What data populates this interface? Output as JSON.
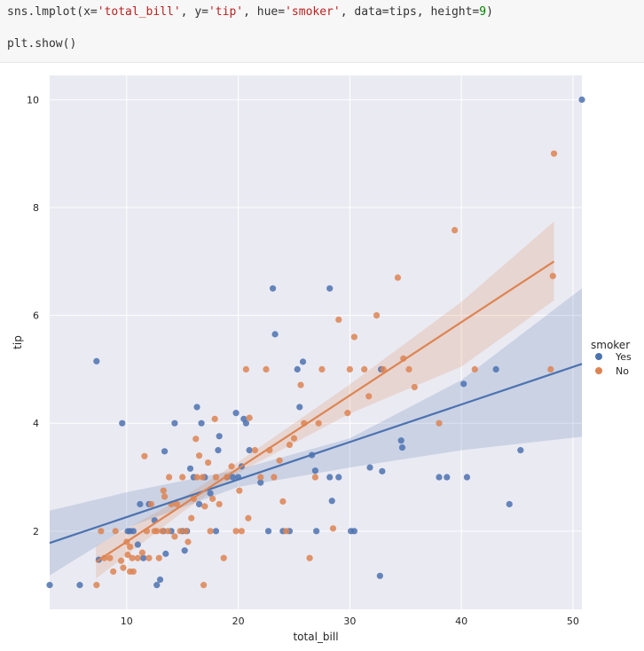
{
  "code": {
    "line1": {
      "fn": "sns.lmplot(x=",
      "x_val": "'total_bill'",
      "sep1": ", y=",
      "y_val": "'tip'",
      "sep2": ", hue=",
      "hue_val": "'smoker'",
      "sep3": ", data=tips, height=",
      "height_val": "9",
      "end": ")"
    },
    "line2": "plt.show()"
  },
  "chart_data": {
    "type": "scatter",
    "xlabel": "total_bill",
    "ylabel": "tip",
    "xlim": [
      3.1,
      50.8
    ],
    "ylim": [
      0.55,
      10.45
    ],
    "xticks": [
      10,
      20,
      30,
      40,
      50
    ],
    "yticks": [
      2,
      4,
      6,
      8,
      10
    ],
    "grid": true,
    "legend": {
      "title": "smoker",
      "placement": "right"
    },
    "series": [
      {
        "name": "Yes",
        "color": "#4c72b0",
        "regression": {
          "x": [
            3.1,
            50.8
          ],
          "y": [
            1.78,
            5.1
          ]
        },
        "ci_band": {
          "x": [
            3.1,
            10,
            20,
            30,
            40,
            50.8
          ],
          "lower": [
            1.18,
            2.06,
            2.82,
            3.18,
            3.5,
            3.75
          ],
          "upper": [
            2.38,
            2.72,
            3.14,
            3.72,
            4.8,
            6.5
          ]
        },
        "points": [
          [
            3.1,
            1.0
          ],
          [
            5.8,
            1.0
          ],
          [
            7.3,
            5.15
          ],
          [
            7.5,
            1.47
          ],
          [
            9.6,
            4.0
          ],
          [
            10.1,
            2.0
          ],
          [
            10.3,
            2.0
          ],
          [
            10.6,
            2.0
          ],
          [
            11.0,
            1.75
          ],
          [
            11.2,
            2.5
          ],
          [
            11.5,
            1.5
          ],
          [
            12.0,
            2.5
          ],
          [
            12.5,
            2.2
          ],
          [
            12.7,
            1.0
          ],
          [
            13.0,
            1.1
          ],
          [
            13.3,
            2.0
          ],
          [
            13.4,
            3.48
          ],
          [
            13.5,
            1.58
          ],
          [
            14.0,
            2.0
          ],
          [
            14.3,
            4.0
          ],
          [
            15.0,
            2.0
          ],
          [
            15.2,
            1.64
          ],
          [
            15.4,
            2.0
          ],
          [
            15.7,
            3.16
          ],
          [
            16.0,
            3.0
          ],
          [
            16.3,
            4.3
          ],
          [
            16.5,
            2.5
          ],
          [
            16.7,
            4.0
          ],
          [
            17.0,
            3.0
          ],
          [
            17.5,
            2.7
          ],
          [
            18.0,
            2.0
          ],
          [
            18.2,
            3.5
          ],
          [
            18.3,
            3.76
          ],
          [
            19.0,
            3.0
          ],
          [
            19.5,
            3.0
          ],
          [
            19.8,
            4.19
          ],
          [
            20.0,
            3.0
          ],
          [
            20.3,
            3.2
          ],
          [
            20.5,
            4.08
          ],
          [
            20.7,
            4.0
          ],
          [
            21.0,
            3.5
          ],
          [
            22.0,
            2.9
          ],
          [
            22.7,
            2.0
          ],
          [
            23.1,
            6.5
          ],
          [
            23.3,
            5.65
          ],
          [
            24.0,
            2.0
          ],
          [
            24.6,
            2.0
          ],
          [
            25.3,
            5.0
          ],
          [
            25.5,
            4.3
          ],
          [
            25.8,
            5.14
          ],
          [
            26.6,
            3.41
          ],
          [
            26.9,
            3.12
          ],
          [
            27.0,
            2.0
          ],
          [
            28.2,
            6.5
          ],
          [
            28.4,
            2.56
          ],
          [
            28.2,
            3.0
          ],
          [
            29.0,
            3.0
          ],
          [
            30.1,
            2.0
          ],
          [
            30.4,
            2.0
          ],
          [
            31.8,
            3.18
          ],
          [
            32.7,
            1.17
          ],
          [
            32.8,
            5.0
          ],
          [
            32.9,
            3.11
          ],
          [
            34.6,
            3.68
          ],
          [
            34.7,
            3.55
          ],
          [
            38.0,
            3.0
          ],
          [
            38.7,
            3.0
          ],
          [
            40.2,
            4.73
          ],
          [
            40.5,
            3.0
          ],
          [
            43.1,
            5.0
          ],
          [
            44.3,
            2.5
          ],
          [
            45.3,
            3.5
          ],
          [
            50.8,
            10.0
          ]
        ]
      },
      {
        "name": "No",
        "color": "#dd8452",
        "regression": {
          "x": [
            7.25,
            48.3
          ],
          "y": [
            1.43,
            7.0
          ]
        },
        "ci_band": {
          "x": [
            7.25,
            15,
            20,
            30,
            40,
            48.3
          ],
          "lower": [
            1.12,
            2.35,
            3.08,
            4.18,
            5.05,
            6.28
          ],
          "upper": [
            1.72,
            2.62,
            3.28,
            4.72,
            6.25,
            7.74
          ]
        },
        "points": [
          [
            7.3,
            1.0
          ],
          [
            7.7,
            2.0
          ],
          [
            8.0,
            1.5
          ],
          [
            8.5,
            1.5
          ],
          [
            8.8,
            1.25
          ],
          [
            9.0,
            2.0
          ],
          [
            9.5,
            1.45
          ],
          [
            9.7,
            1.32
          ],
          [
            10.0,
            1.8
          ],
          [
            10.1,
            1.56
          ],
          [
            10.3,
            1.25
          ],
          [
            10.3,
            1.71
          ],
          [
            10.5,
            1.5
          ],
          [
            10.6,
            1.25
          ],
          [
            11.0,
            1.5
          ],
          [
            11.4,
            1.6
          ],
          [
            11.6,
            3.39
          ],
          [
            11.8,
            2.0
          ],
          [
            12.0,
            1.5
          ],
          [
            12.2,
            2.5
          ],
          [
            12.5,
            2.0
          ],
          [
            12.7,
            2.0
          ],
          [
            12.9,
            1.5
          ],
          [
            13.2,
            2.0
          ],
          [
            13.3,
            2.75
          ],
          [
            13.4,
            2.64
          ],
          [
            13.7,
            2.0
          ],
          [
            13.8,
            3.0
          ],
          [
            14.0,
            2.5
          ],
          [
            14.3,
            1.9
          ],
          [
            14.5,
            2.5
          ],
          [
            14.8,
            2.0
          ],
          [
            15.0,
            3.0
          ],
          [
            15.3,
            2.0
          ],
          [
            15.5,
            1.8
          ],
          [
            15.8,
            2.24
          ],
          [
            16.0,
            2.6
          ],
          [
            16.2,
            3.71
          ],
          [
            16.3,
            3.0
          ],
          [
            16.5,
            3.4
          ],
          [
            16.8,
            3.0
          ],
          [
            16.9,
            1.0
          ],
          [
            17.0,
            2.46
          ],
          [
            17.3,
            3.27
          ],
          [
            17.5,
            2.0
          ],
          [
            17.7,
            2.6
          ],
          [
            17.9,
            4.08
          ],
          [
            18.0,
            3.0
          ],
          [
            18.3,
            2.5
          ],
          [
            18.7,
            1.5
          ],
          [
            19.0,
            3.0
          ],
          [
            19.4,
            3.2
          ],
          [
            19.8,
            2.0
          ],
          [
            20.1,
            2.75
          ],
          [
            20.3,
            2.0
          ],
          [
            20.7,
            5.0
          ],
          [
            20.9,
            2.24
          ],
          [
            21.0,
            4.1
          ],
          [
            21.5,
            3.5
          ],
          [
            22.0,
            3.0
          ],
          [
            22.5,
            5.0
          ],
          [
            22.8,
            3.5
          ],
          [
            23.2,
            3.0
          ],
          [
            23.7,
            3.31
          ],
          [
            24.0,
            2.55
          ],
          [
            24.3,
            2.0
          ],
          [
            24.6,
            3.6
          ],
          [
            25.0,
            3.72
          ],
          [
            25.6,
            4.71
          ],
          [
            25.9,
            4.0
          ],
          [
            26.4,
            1.5
          ],
          [
            26.9,
            3.0
          ],
          [
            27.2,
            4.0
          ],
          [
            27.5,
            5.0
          ],
          [
            28.5,
            2.05
          ],
          [
            29.0,
            5.92
          ],
          [
            29.8,
            4.19
          ],
          [
            30.0,
            5.0
          ],
          [
            30.4,
            5.6
          ],
          [
            31.3,
            5.0
          ],
          [
            31.7,
            4.5
          ],
          [
            32.4,
            6.0
          ],
          [
            33.0,
            5.0
          ],
          [
            34.3,
            6.7
          ],
          [
            34.8,
            5.2
          ],
          [
            35.3,
            5.0
          ],
          [
            35.8,
            4.67
          ],
          [
            38.0,
            4.0
          ],
          [
            39.4,
            7.58
          ],
          [
            41.2,
            5.0
          ],
          [
            48.0,
            5.0
          ],
          [
            48.2,
            6.73
          ],
          [
            48.3,
            9.0
          ]
        ]
      }
    ]
  }
}
